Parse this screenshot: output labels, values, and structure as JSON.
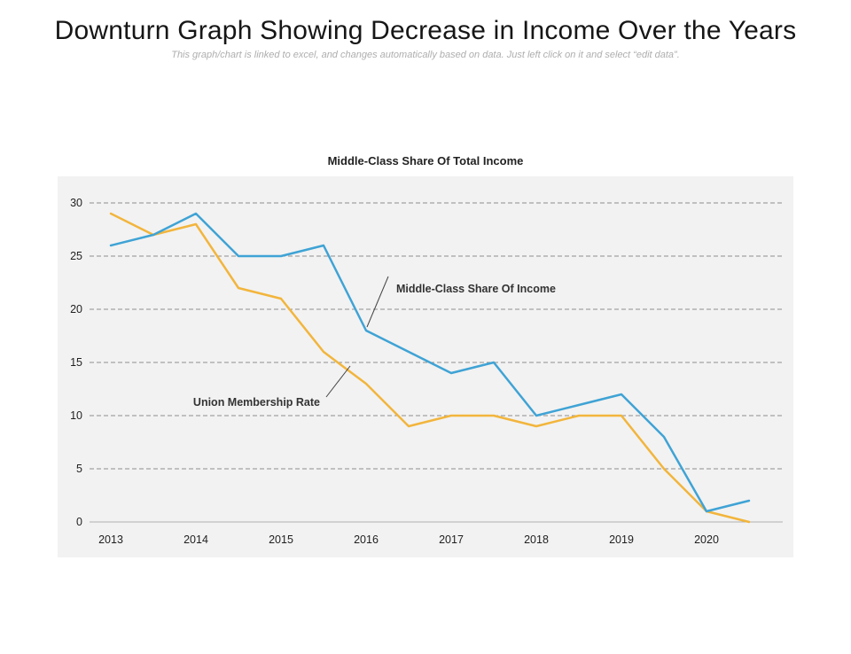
{
  "page": {
    "title": "Downturn Graph Showing Decrease in Income Over the Years",
    "subtitle": "This graph/chart is linked to excel, and changes automatically based on data. Just left click on it and select “edit data”."
  },
  "chart_data": {
    "type": "line",
    "title": "Middle-Class Share Of Total Income",
    "x": [
      2013,
      2013.5,
      2014,
      2014.5,
      2015,
      2015.5,
      2016,
      2016.5,
      2017,
      2017.5,
      2018,
      2018.5,
      2019,
      2019.5,
      2020,
      2020.5
    ],
    "x_tick_labels": [
      "2013",
      "2014",
      "2015",
      "2016",
      "2017",
      "2018",
      "2019",
      "2020"
    ],
    "series": [
      {
        "name": "Middle-Class Share Of Income",
        "color": "#3fa3d5",
        "values": [
          26,
          27,
          29,
          25,
          25,
          26,
          18,
          16,
          14,
          15,
          10,
          11,
          12,
          8,
          1,
          2
        ]
      },
      {
        "name": "Union Membership Rate",
        "color": "#f2b53c",
        "values": [
          29,
          27,
          28,
          22,
          21,
          16,
          13,
          9,
          10,
          10,
          9,
          10,
          10,
          5,
          1,
          0
        ]
      }
    ],
    "y_ticks": [
      0,
      5,
      10,
      15,
      20,
      25,
      30
    ],
    "ylim": [
      0,
      31
    ],
    "grid": "horizontal dashed gray lines, 0-line solid",
    "legend_position": "none (inline annotations with leader lines)",
    "plot_background": "#f2f2f2",
    "annotations": [
      {
        "label": "Middle-Class Share Of Income"
      },
      {
        "label": "Union Membership Rate"
      }
    ]
  }
}
